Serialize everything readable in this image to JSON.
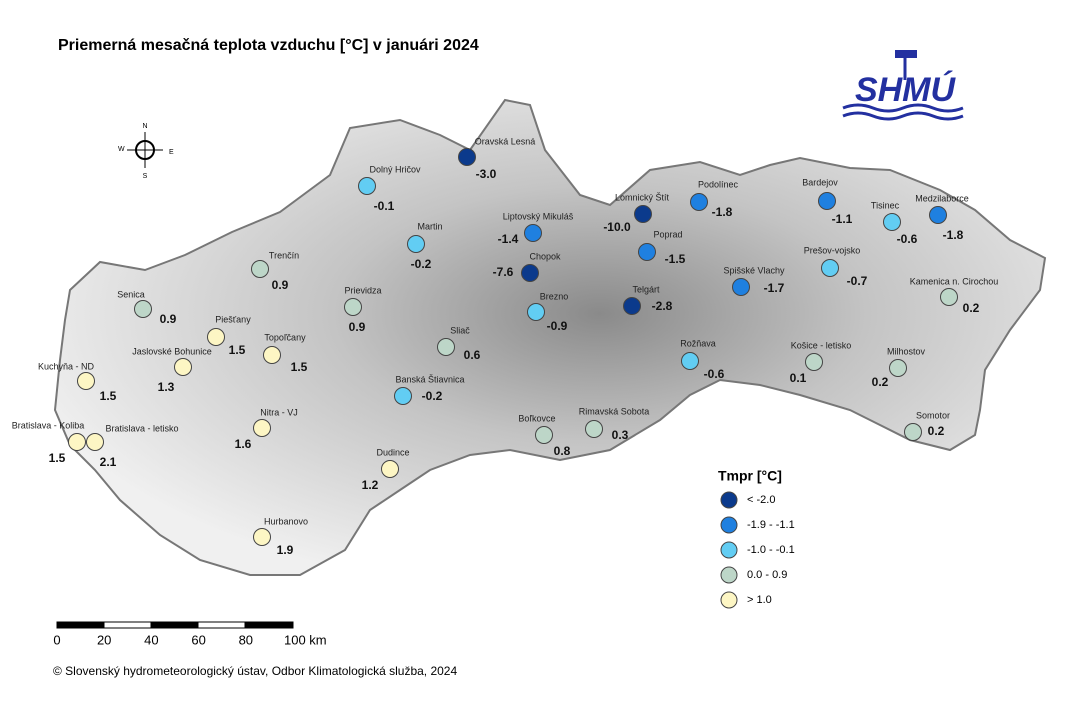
{
  "header": {
    "title": "Priemerná mesačná teplota vzduchu [°C] v januári 2024",
    "logo": "SHMÚ"
  },
  "compass": {
    "n": "N",
    "e": "E",
    "s": "S",
    "w": "W"
  },
  "stations": [
    {
      "name": "Oravská Lesná",
      "value": "-3.0",
      "color": "#0b3a8c"
    },
    {
      "name": "Dolný Hričov",
      "value": "-0.1",
      "color": "#62cdf3"
    },
    {
      "name": "Martin",
      "value": "-0.2",
      "color": "#62cdf3"
    },
    {
      "name": "Liptovský Mikuláš",
      "value": "-1.4",
      "color": "#1f80e0"
    },
    {
      "name": "Chopok",
      "value": "-7.6",
      "color": "#0b3a8c"
    },
    {
      "name": "Lomnický Štít",
      "value": "-10.0",
      "color": "#0b3a8c"
    },
    {
      "name": "Podolínec",
      "value": "-1.8",
      "color": "#1f80e0"
    },
    {
      "name": "Poprad",
      "value": "-1.5",
      "color": "#1f80e0"
    },
    {
      "name": "Telgárt",
      "value": "-2.8",
      "color": "#0b3a8c"
    },
    {
      "name": "Brezno",
      "value": "-0.9",
      "color": "#62cdf3"
    },
    {
      "name": "Bardejov",
      "value": "-1.1",
      "color": "#1f80e0"
    },
    {
      "name": "Tisinec",
      "value": "-0.6",
      "color": "#62cdf3"
    },
    {
      "name": "Medzilaborce",
      "value": "-1.8",
      "color": "#1f80e0"
    },
    {
      "name": "Prešov-vojsko",
      "value": "-0.7",
      "color": "#62cdf3"
    },
    {
      "name": "Spišské Vlachy",
      "value": "-1.7",
      "color": "#1f80e0"
    },
    {
      "name": "Kamenica n. Cirochou",
      "value": "0.2",
      "color": "#bdd6c8"
    },
    {
      "name": "Rožňava",
      "value": "-0.6",
      "color": "#62cdf3"
    },
    {
      "name": "Košice - letisko",
      "value": "0.1",
      "color": "#bdd6c8"
    },
    {
      "name": "Milhostov",
      "value": "0.2",
      "color": "#bdd6c8"
    },
    {
      "name": "Somotor",
      "value": "0.2",
      "color": "#bdd6c8"
    },
    {
      "name": "Trenčín",
      "value": "0.9",
      "color": "#bdd6c8"
    },
    {
      "name": "Senica",
      "value": "0.9",
      "color": "#bdd6c8"
    },
    {
      "name": "Prievidza",
      "value": "0.9",
      "color": "#bdd6c8"
    },
    {
      "name": "Sliač",
      "value": "0.6",
      "color": "#bdd6c8"
    },
    {
      "name": "Banská Štiavnica",
      "value": "-0.2",
      "color": "#62cdf3"
    },
    {
      "name": "Boľkovce",
      "value": "0.8",
      "color": "#bdd6c8"
    },
    {
      "name": "Rimavská Sobota",
      "value": "0.3",
      "color": "#bdd6c8"
    },
    {
      "name": "Piešťany",
      "value": "1.5",
      "color": "#fdf6c4"
    },
    {
      "name": "Topoľčany",
      "value": "1.5",
      "color": "#fdf6c4"
    },
    {
      "name": "Jaslovské Bohunice",
      "value": "1.3",
      "color": "#fdf6c4"
    },
    {
      "name": "Kuchyňa - ND",
      "value": "1.5",
      "color": "#fdf6c4"
    },
    {
      "name": "Nitra - VJ",
      "value": "1.6",
      "color": "#fdf6c4"
    },
    {
      "name": "Bratislava - Koliba",
      "value": "1.5",
      "color": "#fdf6c4"
    },
    {
      "name": "Bratislava - letisko",
      "value": "2.1",
      "color": "#fdf6c4"
    },
    {
      "name": "Dudince",
      "value": "1.2",
      "color": "#fdf6c4"
    },
    {
      "name": "Hurbanovo",
      "value": "1.9",
      "color": "#fdf6c4"
    }
  ],
  "legend": {
    "title": "Tmpr [°C]",
    "items": [
      {
        "label": "< -2.0",
        "color": "#0b3a8c"
      },
      {
        "label": "-1.9 - -1.1",
        "color": "#1f80e0"
      },
      {
        "label": "-1.0 - -0.1",
        "color": "#62cdf3"
      },
      {
        "label": "0.0 - 0.9",
        "color": "#bdd6c8"
      },
      {
        "label": "> 1.0",
        "color": "#fdf6c4"
      }
    ]
  },
  "scale_bar": {
    "labels": [
      "0",
      "20",
      "40",
      "60",
      "80",
      "100 km"
    ]
  },
  "footer": "© Slovenský hydrometeorologický ústav, Odbor Klimatologická služba, 2024"
}
